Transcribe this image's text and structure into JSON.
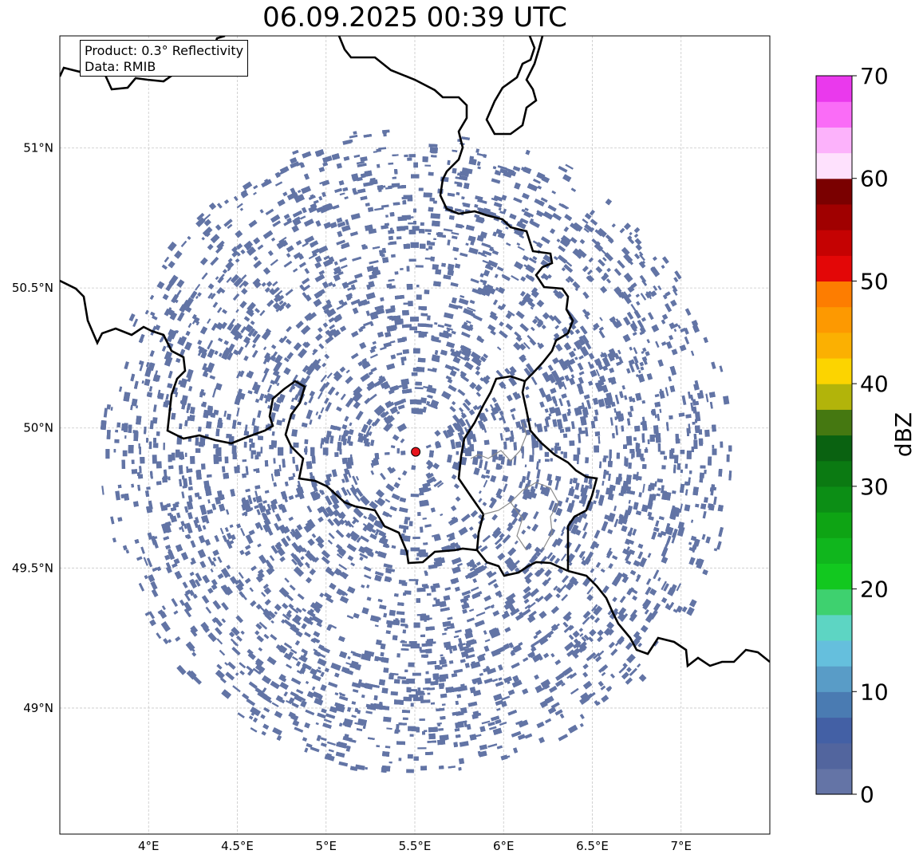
{
  "title": "06.09.2025 00:39 UTC",
  "info": {
    "product": "Product: 0.3° Reflectivity",
    "data": "Data: RMIB"
  },
  "map": {
    "lon_range": [
      3.5,
      7.5
    ],
    "lat_range": [
      48.55,
      51.4
    ],
    "x_ticks": [
      {
        "value": 4.0,
        "label": "4°E"
      },
      {
        "value": 4.5,
        "label": "4.5°E"
      },
      {
        "value": 5.0,
        "label": "5°E"
      },
      {
        "value": 5.5,
        "label": "5.5°E"
      },
      {
        "value": 6.0,
        "label": "6°E"
      },
      {
        "value": 6.5,
        "label": "6.5°E"
      },
      {
        "value": 7.0,
        "label": "7°E"
      }
    ],
    "y_ticks": [
      {
        "value": 49.0,
        "label": "49°N"
      },
      {
        "value": 49.5,
        "label": "49.5°N"
      },
      {
        "value": 50.0,
        "label": "50°N"
      },
      {
        "value": 50.5,
        "label": "50.5°N"
      },
      {
        "value": 51.0,
        "label": "51°N"
      }
    ],
    "grid": true,
    "radar_site": {
      "lon": 5.505,
      "lat": 49.915,
      "color": "#e8141c"
    },
    "echo_color": "#6274a5",
    "echo_range_deg": 1.75
  },
  "colorbar": {
    "label": "dBZ",
    "min": 0,
    "max": 70,
    "tick_values": [
      0,
      10,
      20,
      30,
      40,
      50,
      60,
      70
    ],
    "tick_labels": [
      "0",
      "10",
      "20",
      "30",
      "40",
      "50",
      "60",
      "70"
    ],
    "colors": [
      "#6474a6",
      "#52659e",
      "#4360a5",
      "#4a7bb2",
      "#599cc7",
      "#65bfdd",
      "#5dd5c3",
      "#3ed16f",
      "#12c81f",
      "#10b61d",
      "#0ea414",
      "#0c8e15",
      "#0b7a12",
      "#0a6211",
      "#457811",
      "#b2b40a",
      "#fcd400",
      "#fbb002",
      "#fd9901",
      "#fd7d01",
      "#e30707",
      "#c50202",
      "#a00000",
      "#7a0000",
      "#fee1fd",
      "#fcb2fb",
      "#fa6cf7",
      "#ea39ed"
    ]
  }
}
